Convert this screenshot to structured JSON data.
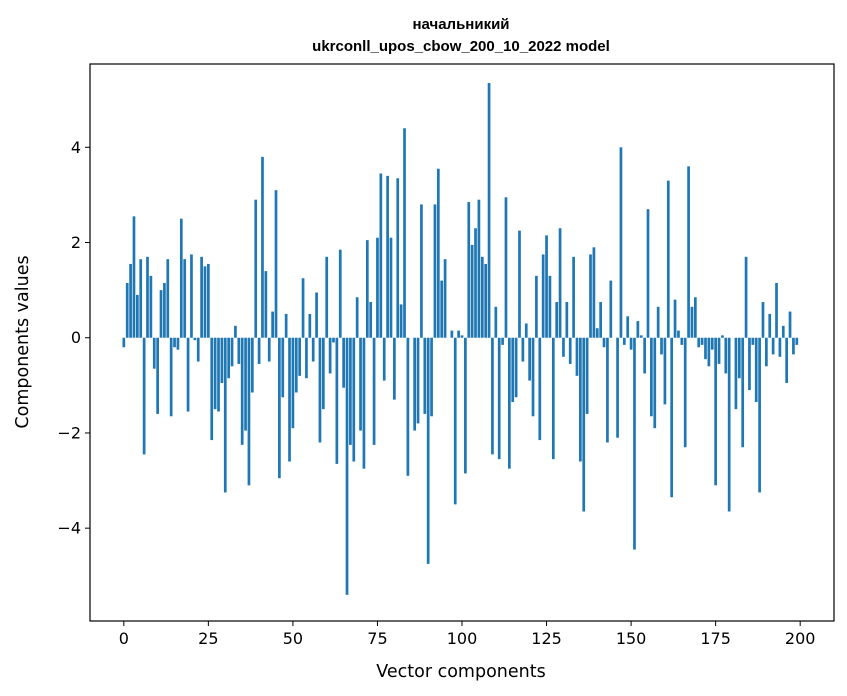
{
  "chart_data": {
    "type": "bar",
    "title": "начальникий",
    "subtitle": "ukrconll_upos_cbow_200_10_2022 model",
    "xlabel": "Vector components",
    "ylabel": "Components values",
    "xlim": [
      -10,
      210
    ],
    "ylim": [
      -5.95,
      5.75
    ],
    "xticks": [
      0,
      25,
      50,
      75,
      100,
      125,
      150,
      175,
      200
    ],
    "yticks": [
      -4,
      -2,
      0,
      2,
      4
    ],
    "ytick_labels": [
      "−4",
      "−2",
      "0",
      "2",
      "4"
    ],
    "bar_color": "#1f77b4",
    "grid": false,
    "legend": "none",
    "values": [
      -0.2,
      1.15,
      1.55,
      2.55,
      0.9,
      1.65,
      -2.45,
      1.7,
      1.3,
      -0.65,
      -1.6,
      1.0,
      1.15,
      1.65,
      -1.65,
      -0.2,
      -0.25,
      2.5,
      1.65,
      -1.55,
      1.75,
      -0.05,
      -0.5,
      1.7,
      1.5,
      1.55,
      -2.15,
      -1.5,
      -1.55,
      -0.95,
      -3.25,
      -0.85,
      -0.6,
      0.25,
      -0.55,
      -2.25,
      -1.95,
      -3.1,
      -1.15,
      2.9,
      -0.55,
      3.8,
      1.4,
      -0.5,
      0.55,
      3.1,
      -2.95,
      -1.25,
      0.5,
      -2.6,
      -1.9,
      -1.15,
      -0.8,
      1.25,
      -0.85,
      0.5,
      -0.5,
      0.95,
      -2.2,
      -1.5,
      1.7,
      -0.75,
      -0.1,
      -2.65,
      1.85,
      -1.05,
      -5.4,
      -2.25,
      -2.6,
      0.85,
      -1.95,
      -2.75,
      2.05,
      0.75,
      -2.25,
      2.1,
      3.45,
      -0.9,
      3.4,
      2.1,
      -1.3,
      3.35,
      0.7,
      4.4,
      -2.9,
      0.0,
      -1.95,
      -1.8,
      2.8,
      -1.6,
      -4.75,
      -1.65,
      2.8,
      3.55,
      1.2,
      1.65,
      0.0,
      0.15,
      -3.5,
      0.15,
      0.05,
      -2.85,
      2.85,
      1.95,
      2.3,
      2.9,
      1.7,
      1.55,
      5.35,
      -2.45,
      0.65,
      -2.55,
      -0.15,
      2.95,
      -2.75,
      -1.35,
      -1.25,
      2.25,
      -0.5,
      0.3,
      -0.9,
      -1.65,
      1.3,
      -2.15,
      1.75,
      2.15,
      1.3,
      -2.55,
      0.75,
      2.3,
      -0.4,
      0.75,
      -0.55,
      1.7,
      -0.8,
      -2.6,
      -3.65,
      -1.6,
      1.75,
      1.9,
      0.2,
      0.75,
      -0.2,
      -2.2,
      1.2,
      0.0,
      -2.1,
      4.0,
      -0.15,
      0.45,
      -0.25,
      -4.45,
      0.35,
      0.05,
      -0.75,
      2.7,
      -1.65,
      -1.9,
      0.65,
      -0.35,
      -1.4,
      3.3,
      -3.35,
      0.8,
      0.15,
      -0.15,
      -2.3,
      3.6,
      0.65,
      0.85,
      -0.2,
      -0.15,
      -0.45,
      -0.6,
      -0.25,
      -3.1,
      -0.55,
      0.05,
      -0.75,
      -3.65,
      0.0,
      -1.5,
      -0.85,
      -2.3,
      1.7,
      -1.1,
      -0.15,
      -1.35,
      -3.25,
      0.75,
      -0.6,
      0.5,
      -0.35,
      1.15,
      -0.4,
      0.25,
      -0.95,
      0.55,
      -0.35,
      -0.15
    ]
  }
}
